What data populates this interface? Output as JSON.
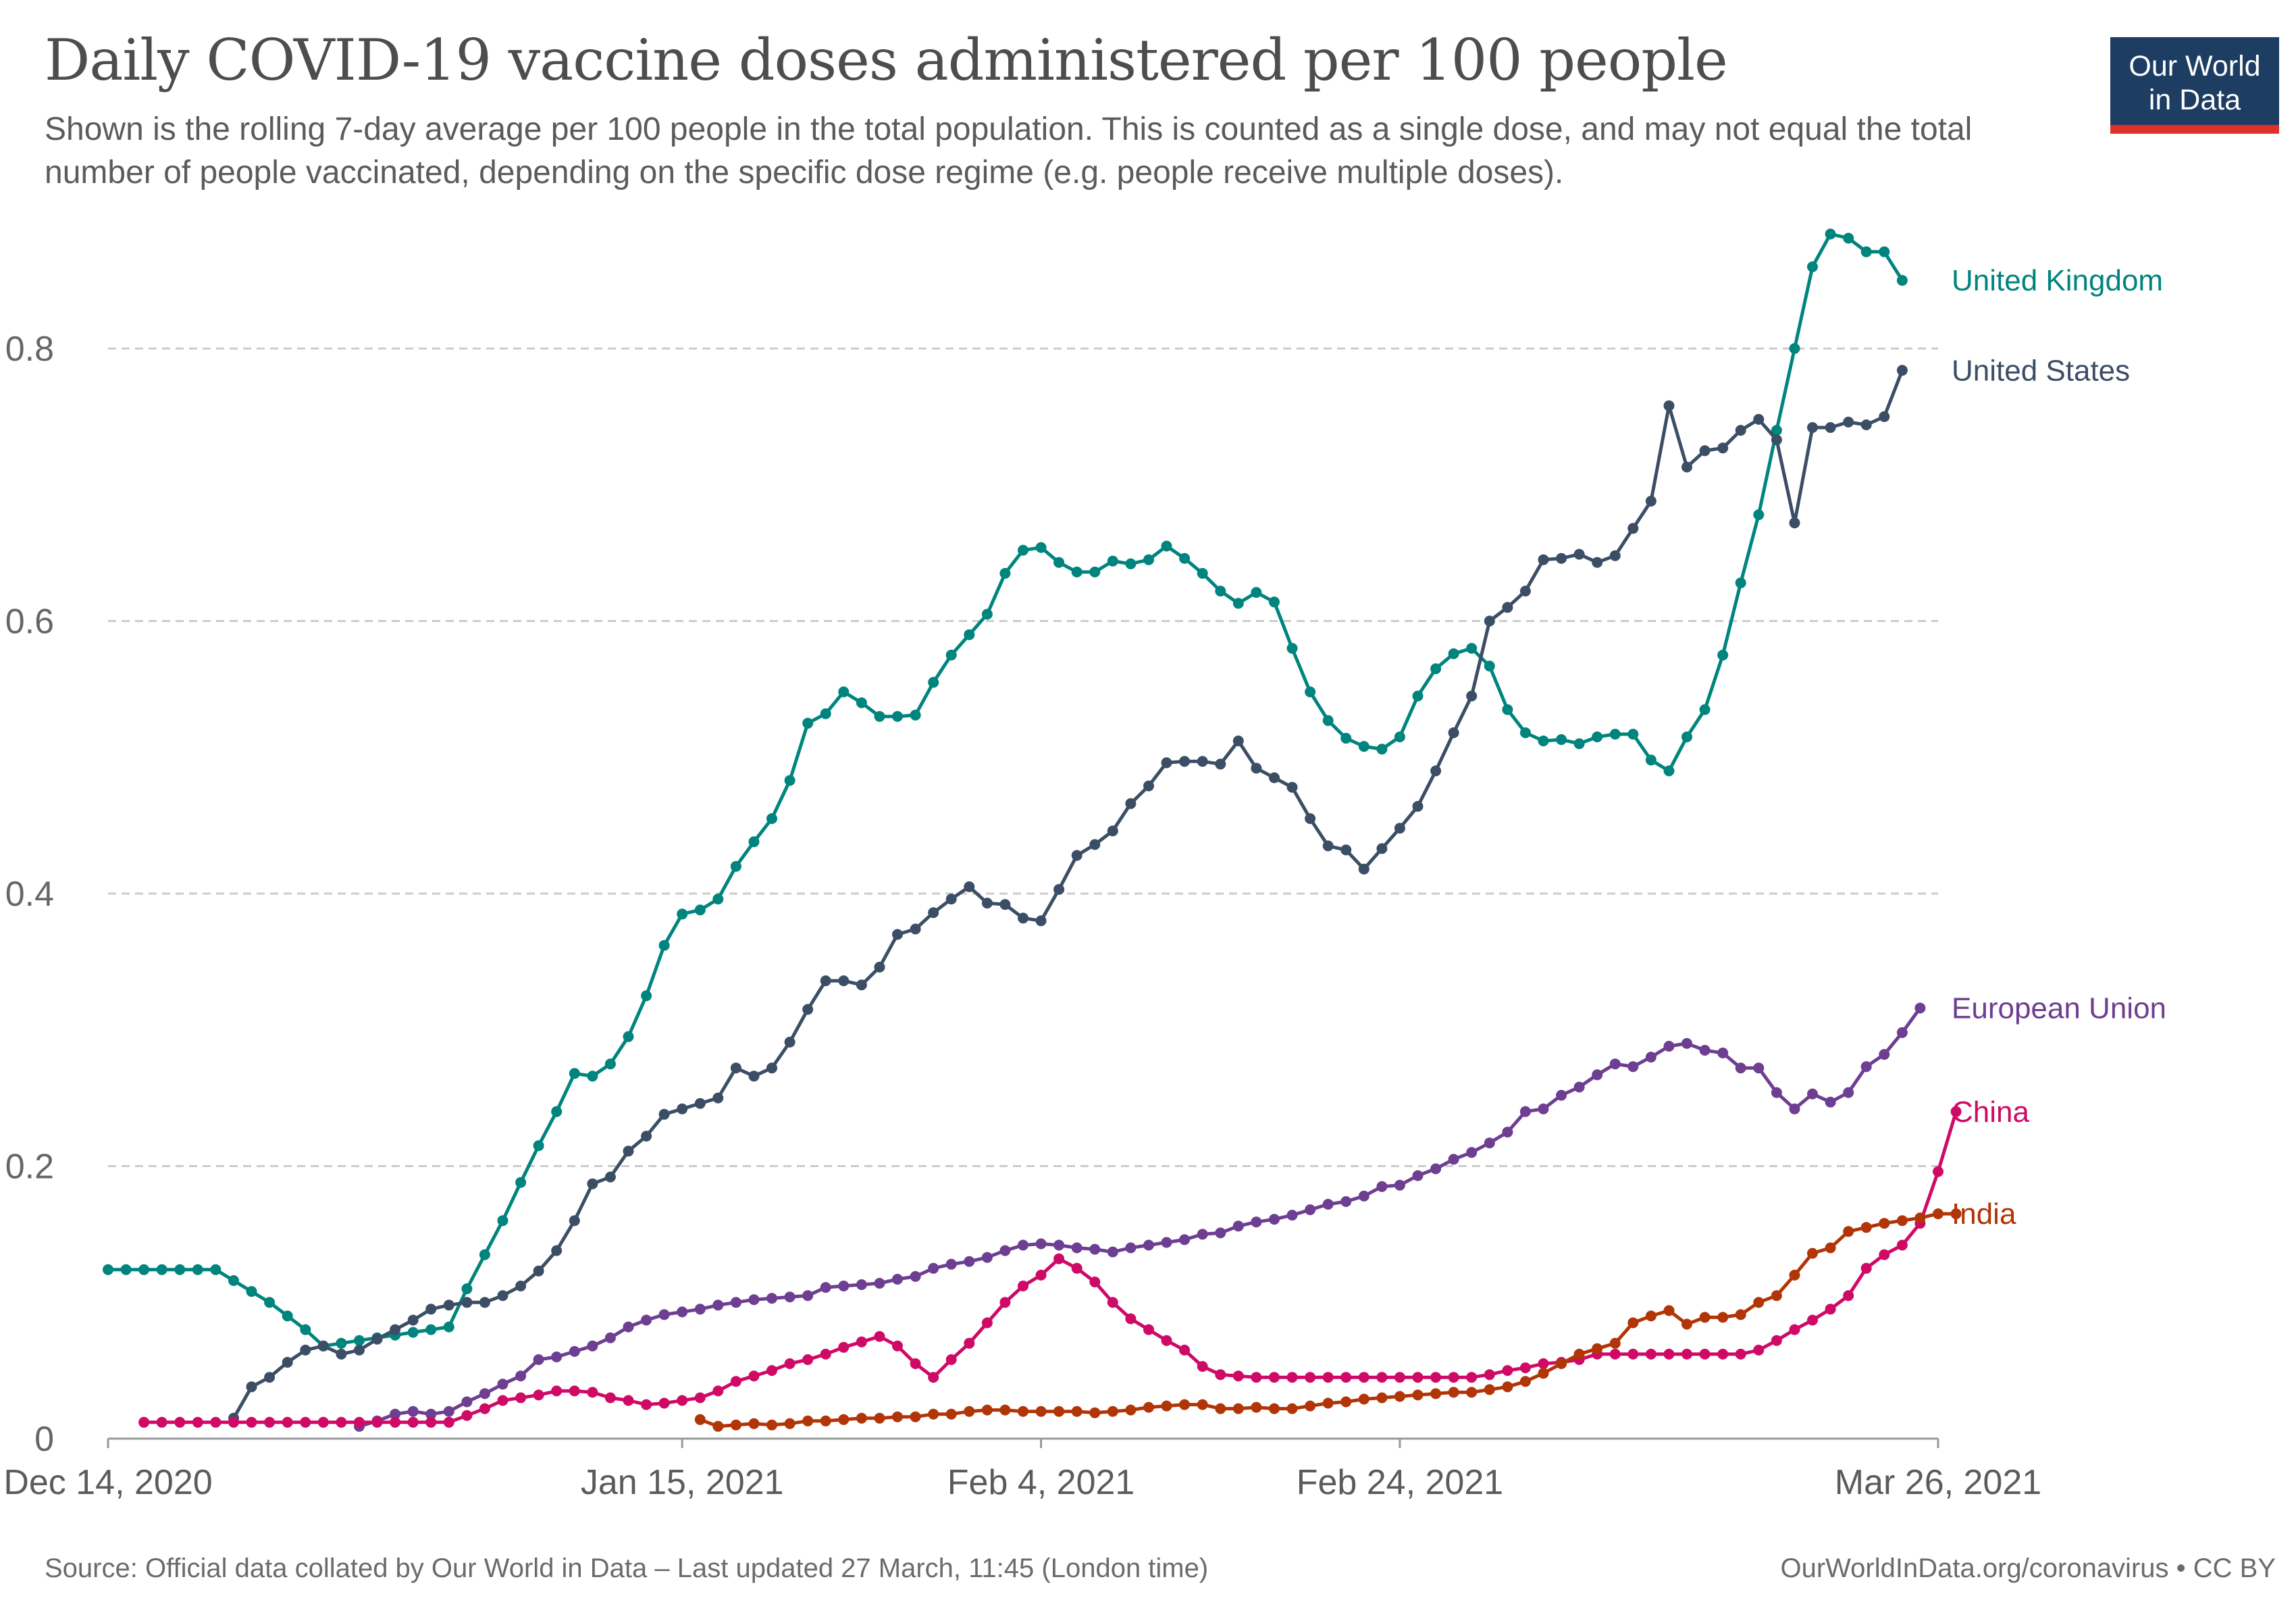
{
  "header": {
    "title": "Daily COVID-19 vaccine doses administered per 100 people",
    "subtitle": "Shown is the rolling 7-day average per 100 people in the total population. This is counted as a single dose, and may not equal the total number of people vaccinated, depending on the specific dose regime (e.g. people receive multiple doses)."
  },
  "logo": {
    "line1": "Our World",
    "line2": "in Data"
  },
  "footer": {
    "source": "Source: Official data collated by Our World in Data – Last updated 27 March, 11:45 (London time)",
    "credit": "OurWorldInData.org/coronavirus • CC BY"
  },
  "chart_data": {
    "type": "line",
    "x_start_date": "2020-12-14",
    "x_end_date": "2021-03-26",
    "x_ticks": [
      {
        "day": 0,
        "label": "Dec 14, 2020"
      },
      {
        "day": 32,
        "label": "Jan 15, 2021"
      },
      {
        "day": 52,
        "label": "Feb 4, 2021"
      },
      {
        "day": 72,
        "label": "Feb 24, 2021"
      },
      {
        "day": 102,
        "label": "Mar 26, 2021"
      }
    ],
    "y_ticks": [
      {
        "value": 0,
        "label": "0"
      },
      {
        "value": 0.2,
        "label": "0.2"
      },
      {
        "value": 0.4,
        "label": "0.4"
      },
      {
        "value": 0.6,
        "label": "0.6"
      },
      {
        "value": 0.8,
        "label": "0.8"
      }
    ],
    "ylim": [
      0,
      0.89
    ],
    "grid": "horizontal-dashed",
    "series": [
      {
        "name": "United Kingdom",
        "color": "#00847e",
        "start_day": 0,
        "values": [
          0.124,
          0.124,
          0.124,
          0.124,
          0.124,
          0.124,
          0.124,
          0.116,
          0.108,
          0.1,
          0.09,
          0.08,
          0.068,
          0.07,
          0.072,
          0.074,
          0.076,
          0.078,
          0.08,
          0.082,
          0.11,
          0.135,
          0.16,
          0.188,
          0.215,
          0.24,
          0.268,
          0.266,
          0.275,
          0.295,
          0.325,
          0.362,
          0.385,
          0.388,
          0.396,
          0.42,
          0.438,
          0.455,
          0.483,
          0.525,
          0.532,
          0.548,
          0.54,
          0.53,
          0.53,
          0.531,
          0.555,
          0.575,
          0.59,
          0.605,
          0.635,
          0.652,
          0.654,
          0.643,
          0.636,
          0.636,
          0.644,
          0.642,
          0.645,
          0.655,
          0.646,
          0.635,
          0.622,
          0.613,
          0.621,
          0.614,
          0.58,
          0.548,
          0.527,
          0.514,
          0.508,
          0.506,
          0.515,
          0.545,
          0.565,
          0.576,
          0.58,
          0.567,
          0.535,
          0.518,
          0.512,
          0.513,
          0.51,
          0.515,
          0.517,
          0.517,
          0.498,
          0.49,
          0.515,
          0.535,
          0.575,
          0.628,
          0.678,
          0.74,
          0.8,
          0.86,
          0.884,
          0.881,
          0.871,
          0.871,
          0.85
        ]
      },
      {
        "name": "United States",
        "color": "#3c4e66",
        "start_day": 7,
        "values": [
          0.015,
          0.038,
          0.045,
          0.056,
          0.065,
          0.068,
          0.062,
          0.065,
          0.073,
          0.08,
          0.087,
          0.095,
          0.098,
          0.1,
          0.1,
          0.105,
          0.112,
          0.123,
          0.138,
          0.16,
          0.187,
          0.192,
          0.211,
          0.222,
          0.238,
          0.242,
          0.246,
          0.25,
          0.272,
          0.266,
          0.272,
          0.291,
          0.315,
          0.336,
          0.336,
          0.333,
          0.346,
          0.37,
          0.374,
          0.386,
          0.396,
          0.405,
          0.393,
          0.392,
          0.382,
          0.38,
          0.403,
          0.428,
          0.436,
          0.446,
          0.466,
          0.479,
          0.496,
          0.497,
          0.497,
          0.495,
          0.512,
          0.492,
          0.485,
          0.478,
          0.455,
          0.435,
          0.432,
          0.418,
          0.433,
          0.448,
          0.464,
          0.49,
          0.518,
          0.545,
          0.6,
          0.61,
          0.622,
          0.645,
          0.646,
          0.649,
          0.643,
          0.648,
          0.668,
          0.688,
          0.758,
          0.713,
          0.725,
          0.727,
          0.74,
          0.748,
          0.733,
          0.672,
          0.742,
          0.742,
          0.746,
          0.744,
          0.75,
          0.784
        ]
      },
      {
        "name": "European Union",
        "color": "#6d3e91",
        "start_day": 14,
        "values": [
          0.009,
          0.013,
          0.018,
          0.02,
          0.018,
          0.02,
          0.027,
          0.033,
          0.04,
          0.046,
          0.058,
          0.06,
          0.064,
          0.068,
          0.074,
          0.082,
          0.087,
          0.091,
          0.093,
          0.095,
          0.098,
          0.1,
          0.102,
          0.103,
          0.104,
          0.105,
          0.111,
          0.112,
          0.113,
          0.114,
          0.117,
          0.119,
          0.125,
          0.128,
          0.13,
          0.133,
          0.138,
          0.142,
          0.143,
          0.142,
          0.14,
          0.139,
          0.137,
          0.14,
          0.142,
          0.144,
          0.146,
          0.15,
          0.151,
          0.156,
          0.159,
          0.161,
          0.164,
          0.168,
          0.172,
          0.174,
          0.178,
          0.185,
          0.186,
          0.193,
          0.198,
          0.205,
          0.21,
          0.217,
          0.225,
          0.24,
          0.242,
          0.252,
          0.258,
          0.267,
          0.275,
          0.273,
          0.28,
          0.288,
          0.29,
          0.285,
          0.283,
          0.272,
          0.272,
          0.254,
          0.242,
          0.253,
          0.247,
          0.254,
          0.273,
          0.282,
          0.298,
          0.316
        ]
      },
      {
        "name": "China",
        "color": "#cf0a66",
        "start_day": 2,
        "values": [
          0.012,
          0.012,
          0.012,
          0.012,
          0.012,
          0.012,
          0.012,
          0.012,
          0.012,
          0.012,
          0.012,
          0.012,
          0.012,
          0.012,
          0.012,
          0.012,
          0.012,
          0.012,
          0.017,
          0.022,
          0.028,
          0.03,
          0.032,
          0.035,
          0.035,
          0.034,
          0.03,
          0.028,
          0.025,
          0.026,
          0.028,
          0.03,
          0.035,
          0.042,
          0.046,
          0.05,
          0.055,
          0.058,
          0.062,
          0.067,
          0.071,
          0.075,
          0.068,
          0.055,
          0.045,
          0.058,
          0.07,
          0.085,
          0.1,
          0.112,
          0.12,
          0.132,
          0.125,
          0.115,
          0.1,
          0.088,
          0.08,
          0.072,
          0.065,
          0.053,
          0.047,
          0.046,
          0.045,
          0.045,
          0.045,
          0.045,
          0.045,
          0.045,
          0.045,
          0.045,
          0.045,
          0.045,
          0.045,
          0.045,
          0.045,
          0.047,
          0.05,
          0.052,
          0.055,
          0.056,
          0.058,
          0.062,
          0.062,
          0.062,
          0.062,
          0.062,
          0.062,
          0.062,
          0.062,
          0.062,
          0.065,
          0.072,
          0.08,
          0.087,
          0.095,
          0.105,
          0.125,
          0.135,
          0.142,
          0.158,
          0.196,
          0.24
        ]
      },
      {
        "name": "India",
        "color": "#b13507",
        "start_day": 33,
        "values": [
          0.014,
          0.009,
          0.01,
          0.011,
          0.01,
          0.011,
          0.013,
          0.013,
          0.014,
          0.015,
          0.015,
          0.016,
          0.016,
          0.018,
          0.018,
          0.02,
          0.021,
          0.021,
          0.02,
          0.02,
          0.02,
          0.02,
          0.019,
          0.02,
          0.021,
          0.023,
          0.024,
          0.025,
          0.025,
          0.022,
          0.022,
          0.023,
          0.022,
          0.022,
          0.024,
          0.026,
          0.027,
          0.029,
          0.03,
          0.031,
          0.032,
          0.033,
          0.034,
          0.034,
          0.036,
          0.038,
          0.042,
          0.048,
          0.055,
          0.062,
          0.066,
          0.07,
          0.085,
          0.09,
          0.094,
          0.084,
          0.089,
          0.089,
          0.091,
          0.1,
          0.105,
          0.12,
          0.136,
          0.14,
          0.152,
          0.155,
          0.158,
          0.16,
          0.162,
          0.165,
          0.165
        ]
      }
    ]
  }
}
